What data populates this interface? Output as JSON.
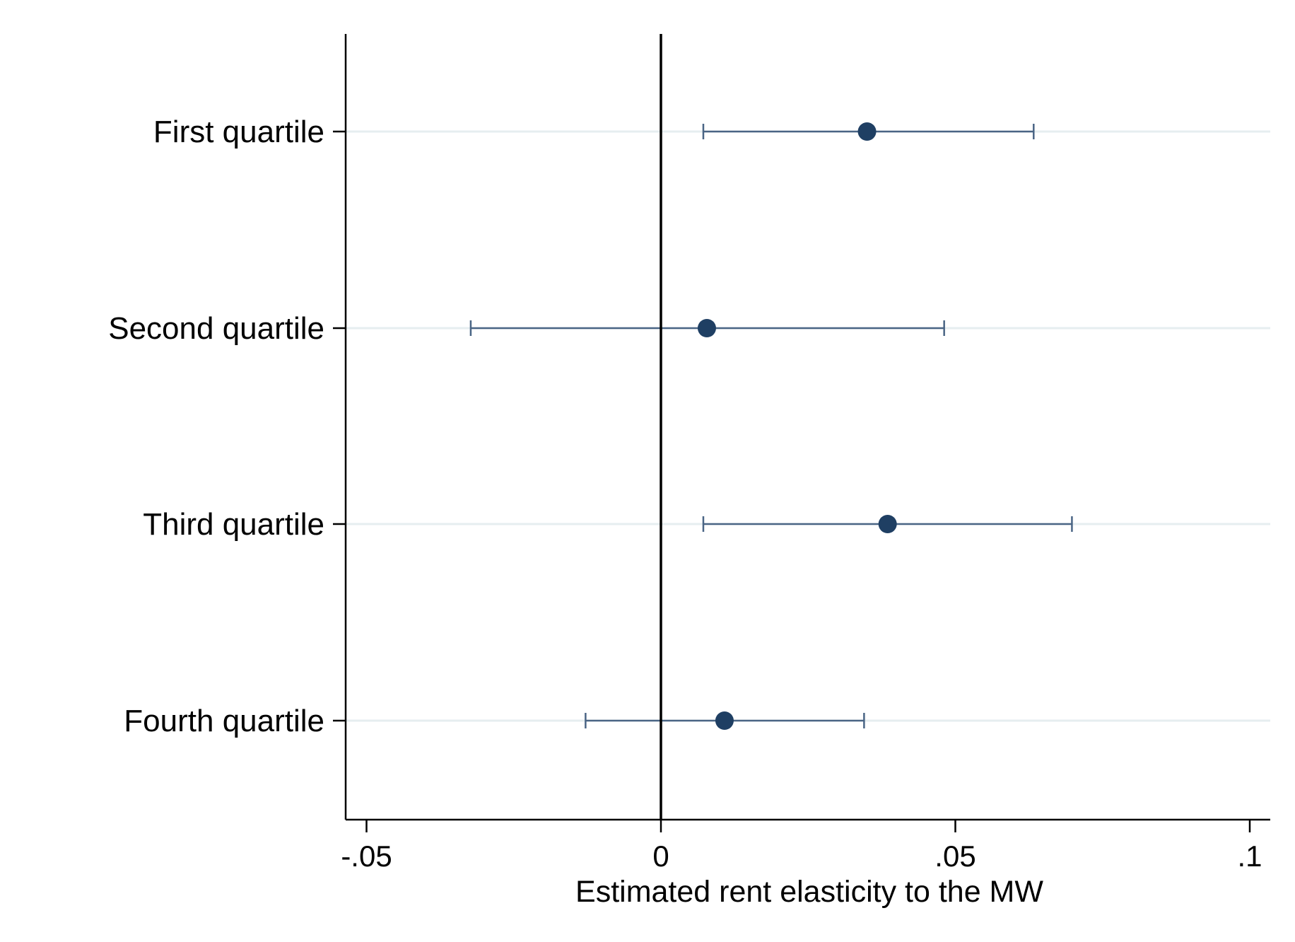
{
  "chart_data": {
    "type": "scatter",
    "xlabel": "Estimated rent elasticity to the MW",
    "xlim": [
      -0.0535,
      0.1036
    ],
    "xticks": [
      {
        "value": -0.05,
        "label": "-.05"
      },
      {
        "value": 0,
        "label": "0"
      },
      {
        "value": 0.05,
        "label": ".05"
      },
      {
        "value": 0.1,
        "label": ".1"
      }
    ],
    "reference_line": 0,
    "categories": [
      "First quartile",
      "Second quartile",
      "Third quartile",
      "Fourth quartile"
    ],
    "series": [
      {
        "estimates": [
          0.035,
          0.0078,
          0.0385,
          0.0108
        ],
        "ci_low": [
          0.0072,
          -0.0323,
          0.0072,
          -0.0128
        ],
        "ci_high": [
          0.0633,
          0.0481,
          0.0698,
          0.0345
        ]
      }
    ],
    "grid": true,
    "legend": "none",
    "colors": {
      "marker": "#1f3f63",
      "ci": "#4a6585",
      "grid": "#e6eef0",
      "axis": "#000000"
    }
  }
}
